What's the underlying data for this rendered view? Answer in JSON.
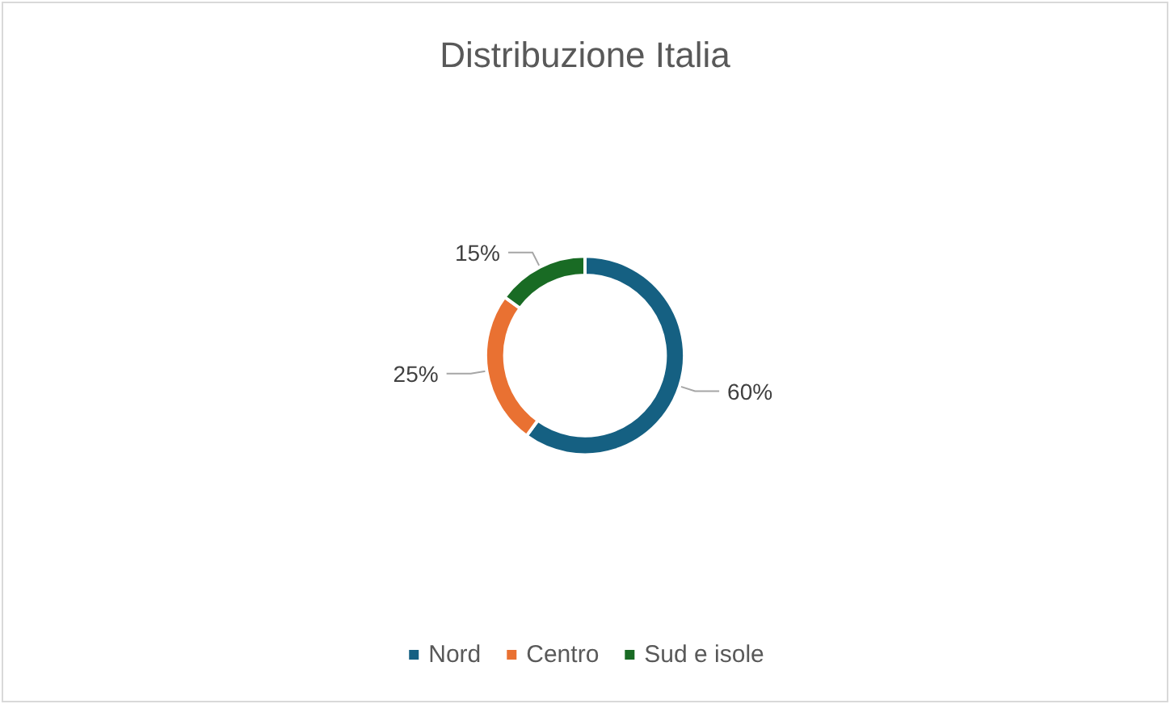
{
  "chart_data": {
    "type": "donut",
    "title": "Distribuzione Italia",
    "categories": [
      "Nord",
      "Centro",
      "Sud e isole"
    ],
    "values": [
      60,
      25,
      15
    ],
    "colors": [
      "#156082",
      "#e97132",
      "#196b24"
    ],
    "value_labels": [
      "60%",
      "25%",
      "15%"
    ],
    "legend": "bottom"
  }
}
